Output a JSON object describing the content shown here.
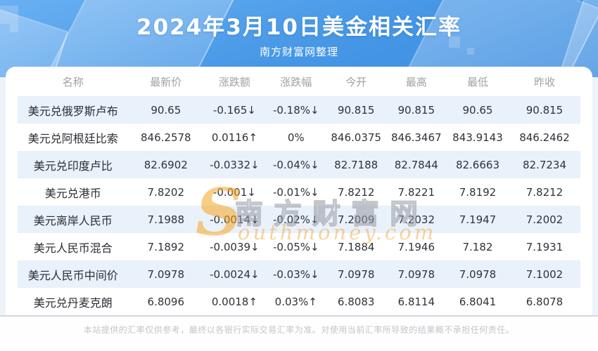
{
  "header": {
    "title": "2024年3月10日美金相关汇率",
    "subtitle": "南方财富网整理"
  },
  "watermark": {
    "initial": "S",
    "cn": "南方财富网",
    "en": "outhmoney.com"
  },
  "footer": {
    "disclaimer": "本站提供的汇率仅供参考，最终以各银行实际交易汇率为准。对使用当前汇率所导致的结果概不承担任何责任。"
  },
  "colors": {
    "up": "#ec3323",
    "down": "#1ca04f",
    "neutral": "#2f3238",
    "header_blue": "#4697e6",
    "stripe": "#e9f1fa"
  },
  "chart_data": {
    "type": "table",
    "title": "2024年3月10日美金相关汇率",
    "columns": [
      "名称",
      "最新价",
      "涨跌额",
      "涨跌幅",
      "今开",
      "最高",
      "最低",
      "昨收"
    ],
    "rows": [
      {
        "name": "美元兑俄罗斯卢布",
        "cells": [
          [
            "90.65",
            "down"
          ],
          [
            "-0.165↓",
            "down"
          ],
          [
            "-0.18%↓",
            "down"
          ],
          [
            "90.815",
            "n"
          ],
          [
            "90.815",
            "n"
          ],
          [
            "90.65",
            "n"
          ],
          [
            "90.815",
            "n"
          ]
        ]
      },
      {
        "name": "美元兑阿根廷比索",
        "cells": [
          [
            "846.2578",
            "n"
          ],
          [
            "0.0116↑",
            "up"
          ],
          [
            "0%",
            "n"
          ],
          [
            "846.0375",
            "n"
          ],
          [
            "846.3467",
            "n"
          ],
          [
            "843.9143",
            "n"
          ],
          [
            "846.2462",
            "n"
          ]
        ]
      },
      {
        "name": "美元兑印度卢比",
        "cells": [
          [
            "82.6902",
            "down"
          ],
          [
            "-0.0332↓",
            "down"
          ],
          [
            "-0.04%↓",
            "down"
          ],
          [
            "82.7188",
            "n"
          ],
          [
            "82.7844",
            "n"
          ],
          [
            "82.6663",
            "n"
          ],
          [
            "82.7234",
            "n"
          ]
        ]
      },
      {
        "name": "美元兑港币",
        "cells": [
          [
            "7.8202",
            "down"
          ],
          [
            "-0.001↓",
            "down"
          ],
          [
            "-0.01%↓",
            "down"
          ],
          [
            "7.8212",
            "n"
          ],
          [
            "7.8221",
            "n"
          ],
          [
            "7.8192",
            "n"
          ],
          [
            "7.8212",
            "n"
          ]
        ]
      },
      {
        "name": "美元离岸人民币",
        "cells": [
          [
            "7.1988",
            "down"
          ],
          [
            "-0.0014↓",
            "down"
          ],
          [
            "-0.02%↓",
            "down"
          ],
          [
            "7.2009",
            "n"
          ],
          [
            "7.2032",
            "n"
          ],
          [
            "7.1947",
            "n"
          ],
          [
            "7.2002",
            "n"
          ]
        ]
      },
      {
        "name": "美元人民币混合",
        "cells": [
          [
            "7.1892",
            "down"
          ],
          [
            "-0.0039↓",
            "down"
          ],
          [
            "-0.05%↓",
            "down"
          ],
          [
            "7.1884",
            "n"
          ],
          [
            "7.1946",
            "n"
          ],
          [
            "7.182",
            "n"
          ],
          [
            "7.1931",
            "n"
          ]
        ]
      },
      {
        "name": "美元人民币中间价",
        "cells": [
          [
            "7.0978",
            "down"
          ],
          [
            "-0.0024↓",
            "down"
          ],
          [
            "-0.03%↓",
            "down"
          ],
          [
            "7.0978",
            "n"
          ],
          [
            "7.0978",
            "n"
          ],
          [
            "7.0978",
            "n"
          ],
          [
            "7.1002",
            "n"
          ]
        ]
      },
      {
        "name": "美元兑丹麦克朗",
        "cells": [
          [
            "6.8096",
            "up"
          ],
          [
            "0.0018↑",
            "up"
          ],
          [
            "0.03%↑",
            "up"
          ],
          [
            "6.8083",
            "n"
          ],
          [
            "6.8114",
            "n"
          ],
          [
            "6.8041",
            "n"
          ],
          [
            "6.8078",
            "n"
          ]
        ]
      }
    ]
  }
}
